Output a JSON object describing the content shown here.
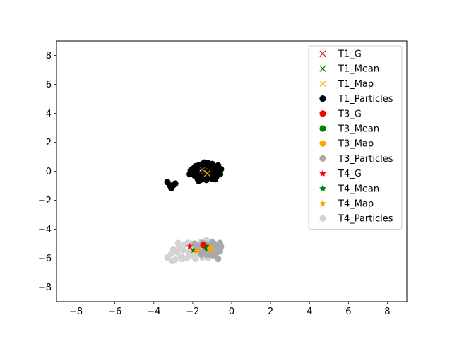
{
  "chart_data": {
    "type": "scatter",
    "title": "",
    "xlabel": "",
    "ylabel": "",
    "xlim": [
      -9,
      9
    ],
    "ylim": [
      -9,
      9
    ],
    "xticks": [
      -8,
      -6,
      -4,
      -2,
      0,
      2,
      4,
      6,
      8
    ],
    "yticks": [
      -8,
      -6,
      -4,
      -2,
      0,
      2,
      4,
      6,
      8
    ],
    "xtick_labels": [
      "−8",
      "−6",
      "−4",
      "−2",
      "0",
      "2",
      "4",
      "6",
      "8"
    ],
    "ytick_labels": [
      "−8",
      "−6",
      "−4",
      "−2",
      "0",
      "2",
      "4",
      "6",
      "8"
    ],
    "grid": false,
    "legend_position": "top-right",
    "series": [
      {
        "name": "T1_G",
        "marker": "x",
        "color": "#d62728",
        "points": [
          [
            -1.5,
            0.1
          ]
        ]
      },
      {
        "name": "T1_Mean",
        "marker": "x",
        "color": "#008000",
        "points": [
          [
            -1.4,
            0.0
          ]
        ]
      },
      {
        "name": "T1_Map",
        "marker": "x",
        "color": "#ffa500",
        "points": [
          [
            -1.25,
            -0.15
          ]
        ]
      },
      {
        "name": "T1_Particles",
        "marker": "o",
        "color": "#000000",
        "points": [
          [
            -2.1,
            0.05
          ],
          [
            -2.0,
            -0.1
          ],
          [
            -1.95,
            0.2
          ],
          [
            -1.9,
            -0.3
          ],
          [
            -1.85,
            0.35
          ],
          [
            -1.8,
            0.0
          ],
          [
            -1.75,
            -0.5
          ],
          [
            -1.7,
            0.4
          ],
          [
            -1.65,
            -0.2
          ],
          [
            -1.6,
            0.3
          ],
          [
            -1.55,
            -0.45
          ],
          [
            -1.5,
            0.5
          ],
          [
            -1.45,
            -0.1
          ],
          [
            -1.4,
            0.25
          ],
          [
            -1.35,
            -0.55
          ],
          [
            -1.3,
            0.45
          ],
          [
            -1.25,
            0.0
          ],
          [
            -1.2,
            -0.35
          ],
          [
            -1.15,
            0.35
          ],
          [
            -1.1,
            -0.15
          ],
          [
            -1.05,
            0.15
          ],
          [
            -1.0,
            -0.5
          ],
          [
            -0.95,
            0.3
          ],
          [
            -0.9,
            -0.25
          ],
          [
            -0.85,
            0.1
          ],
          [
            -0.8,
            -0.4
          ],
          [
            -0.75,
            0.2
          ],
          [
            -0.7,
            -0.05
          ],
          [
            -0.65,
            0.15
          ],
          [
            -0.6,
            -0.2
          ],
          [
            -0.55,
            0.15
          ],
          [
            -1.4,
            0.6
          ],
          [
            -1.2,
            0.55
          ],
          [
            -1.6,
            -0.6
          ],
          [
            -1.0,
            0.5
          ],
          [
            -0.85,
            -0.55
          ],
          [
            -2.15,
            -0.2
          ],
          [
            -1.7,
            -0.65
          ],
          [
            -1.3,
            -0.6
          ],
          [
            -0.7,
            0.4
          ],
          [
            -3.3,
            -0.75
          ],
          [
            -3.15,
            -1.0
          ],
          [
            -3.1,
            -1.15
          ],
          [
            -3.0,
            -0.95
          ],
          [
            -2.9,
            -0.85
          ]
        ]
      },
      {
        "name": "T3_G",
        "marker": "o",
        "color": "#ff0000",
        "points": [
          [
            -1.45,
            -5.1
          ]
        ]
      },
      {
        "name": "T3_Mean",
        "marker": "o",
        "color": "#008000",
        "points": [
          [
            -1.25,
            -5.3
          ]
        ]
      },
      {
        "name": "T3_Map",
        "marker": "o",
        "color": "#ffa500",
        "points": [
          [
            -1.1,
            -5.35
          ]
        ]
      },
      {
        "name": "T3_Particles",
        "marker": "o",
        "color": "#a9a9a9",
        "points": [
          [
            -1.9,
            -5.0
          ],
          [
            -1.8,
            -5.4
          ],
          [
            -1.7,
            -5.2
          ],
          [
            -1.6,
            -5.6
          ],
          [
            -1.5,
            -4.95
          ],
          [
            -1.4,
            -5.5
          ],
          [
            -1.3,
            -5.05
          ],
          [
            -1.2,
            -5.7
          ],
          [
            -1.1,
            -5.1
          ],
          [
            -1.0,
            -5.45
          ],
          [
            -0.9,
            -5.0
          ],
          [
            -0.85,
            -5.8
          ],
          [
            -0.8,
            -5.25
          ],
          [
            -0.75,
            -5.6
          ],
          [
            -0.7,
            -5.05
          ],
          [
            -0.65,
            -5.35
          ],
          [
            -0.6,
            -4.95
          ],
          [
            -0.55,
            -5.2
          ],
          [
            -0.7,
            -6.05
          ],
          [
            -0.95,
            -5.85
          ],
          [
            -1.25,
            -5.8
          ],
          [
            -1.55,
            -5.75
          ],
          [
            -1.0,
            -4.9
          ],
          [
            -0.6,
            -5.5
          ]
        ]
      },
      {
        "name": "T4_G",
        "marker": "*",
        "color": "#ff0000",
        "points": [
          [
            -2.15,
            -5.2
          ]
        ]
      },
      {
        "name": "T4_Mean",
        "marker": "*",
        "color": "#008000",
        "points": [
          [
            -1.95,
            -5.45
          ]
        ]
      },
      {
        "name": "T4_Map",
        "marker": "*",
        "color": "#ffa500",
        "points": [
          [
            -1.8,
            -5.5
          ]
        ]
      },
      {
        "name": "T4_Particles",
        "marker": "o",
        "color": "#d3d3d3",
        "points": [
          [
            -3.3,
            -5.95
          ],
          [
            -3.1,
            -5.7
          ],
          [
            -3.0,
            -5.4
          ],
          [
            -2.9,
            -6.1
          ],
          [
            -2.8,
            -5.6
          ],
          [
            -2.7,
            -5.2
          ],
          [
            -2.6,
            -5.9
          ],
          [
            -2.5,
            -5.45
          ],
          [
            -2.4,
            -5.05
          ],
          [
            -2.3,
            -6.0
          ],
          [
            -2.2,
            -5.6
          ],
          [
            -2.1,
            -5.0
          ],
          [
            -2.0,
            -5.85
          ],
          [
            -1.9,
            -5.3
          ],
          [
            -1.85,
            -6.05
          ],
          [
            -1.75,
            -5.7
          ],
          [
            -1.6,
            -4.9
          ],
          [
            -1.5,
            -5.95
          ],
          [
            -1.4,
            -5.45
          ],
          [
            -1.3,
            -4.75
          ],
          [
            -1.2,
            -6.0
          ],
          [
            -2.55,
            -6.05
          ],
          [
            -2.25,
            -4.95
          ],
          [
            -1.65,
            -5.55
          ],
          [
            -3.05,
            -6.2
          ],
          [
            -2.75,
            -4.95
          ]
        ]
      }
    ]
  }
}
